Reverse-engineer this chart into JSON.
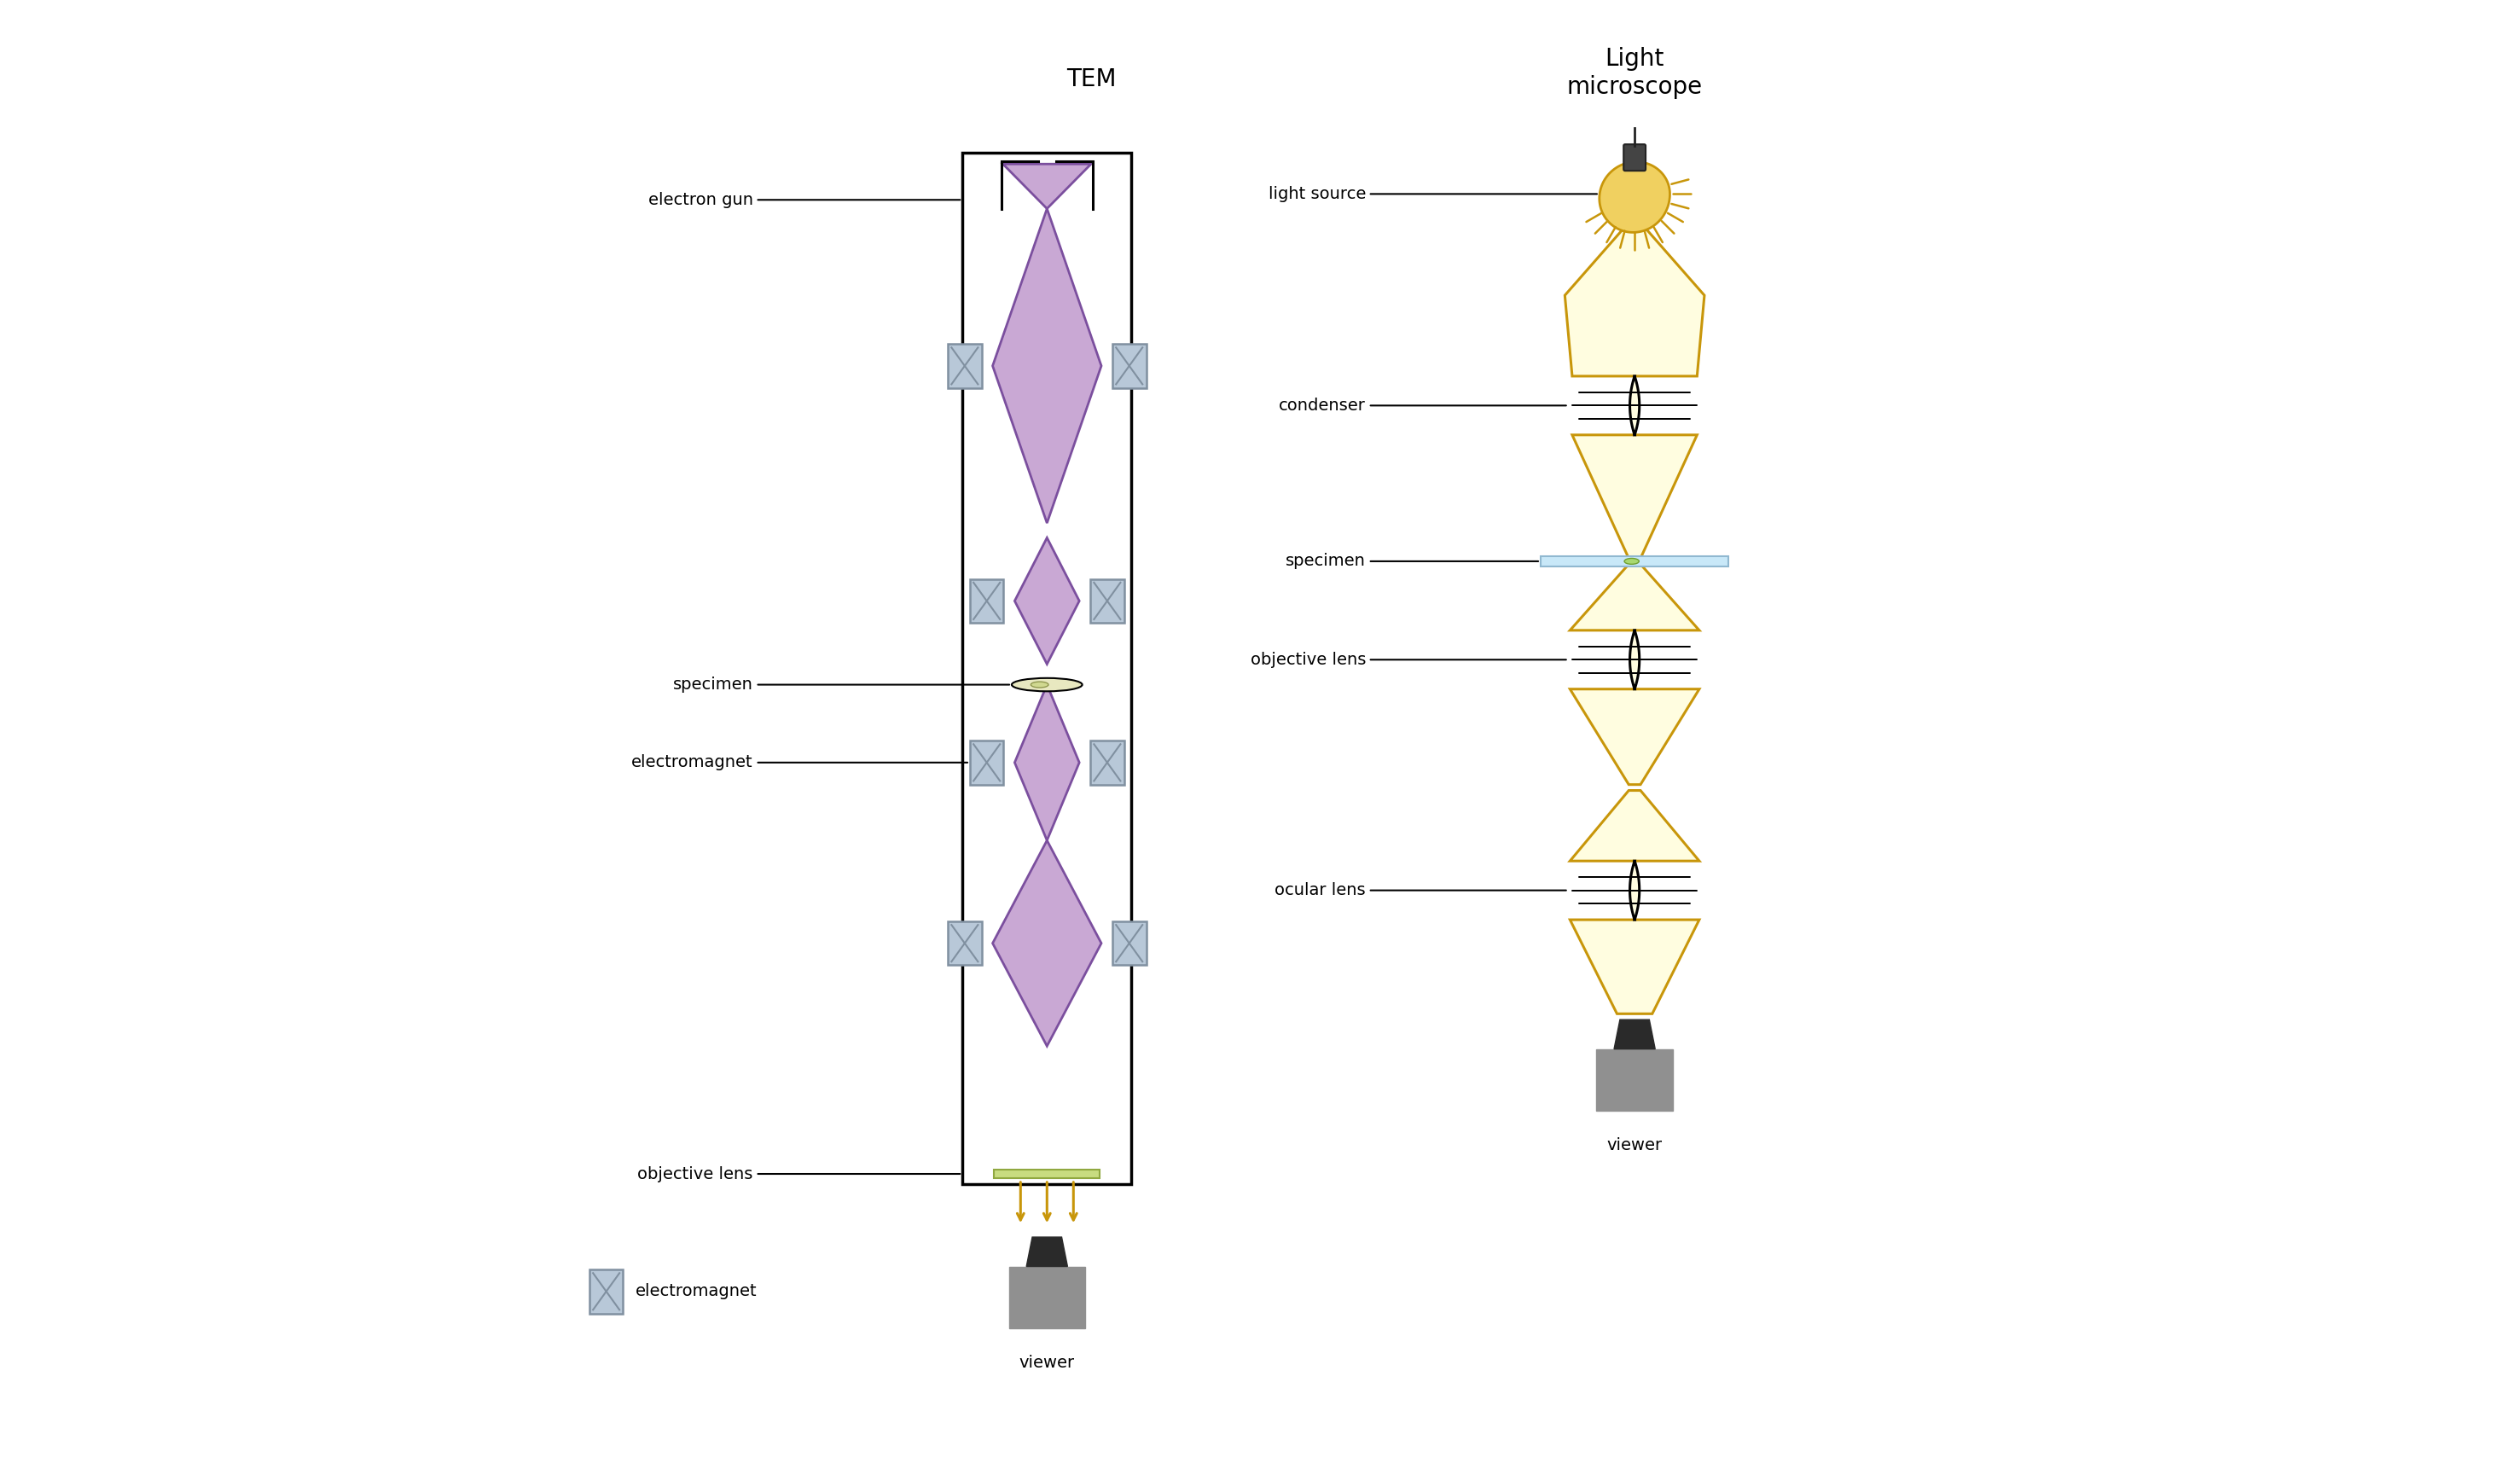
{
  "fig_width": 29.54,
  "fig_height": 17.36,
  "bg_color": "#ffffff",
  "tem_title": "TEM",
  "lm_title": "Light\nmicroscope",
  "legend_label": "electromagnet",
  "purple_fill": "#c9a8d4",
  "purple_stroke": "#7b4f9e",
  "blue_gray_fill": "#b8c8d8",
  "blue_gray_stroke": "#8090a0",
  "yellow_stroke": "#c8960a",
  "light_yellow": "#fffde0",
  "viewer_dark": "#2a2a2a",
  "viewer_gray": "#909090",
  "bulb_color": "#f0d060",
  "bulb_stroke": "#c8960a",
  "ray_color": "#c8960a",
  "cap_color": "#444444",
  "spec_blue": "#c8e8f8",
  "spec_blue_stroke": "#90b8d0",
  "green_strip": "#c8dc80",
  "green_strip_stroke": "#90a840",
  "arrow_color": "#c8960a",
  "label_fontsize": 14,
  "title_fontsize": 20
}
